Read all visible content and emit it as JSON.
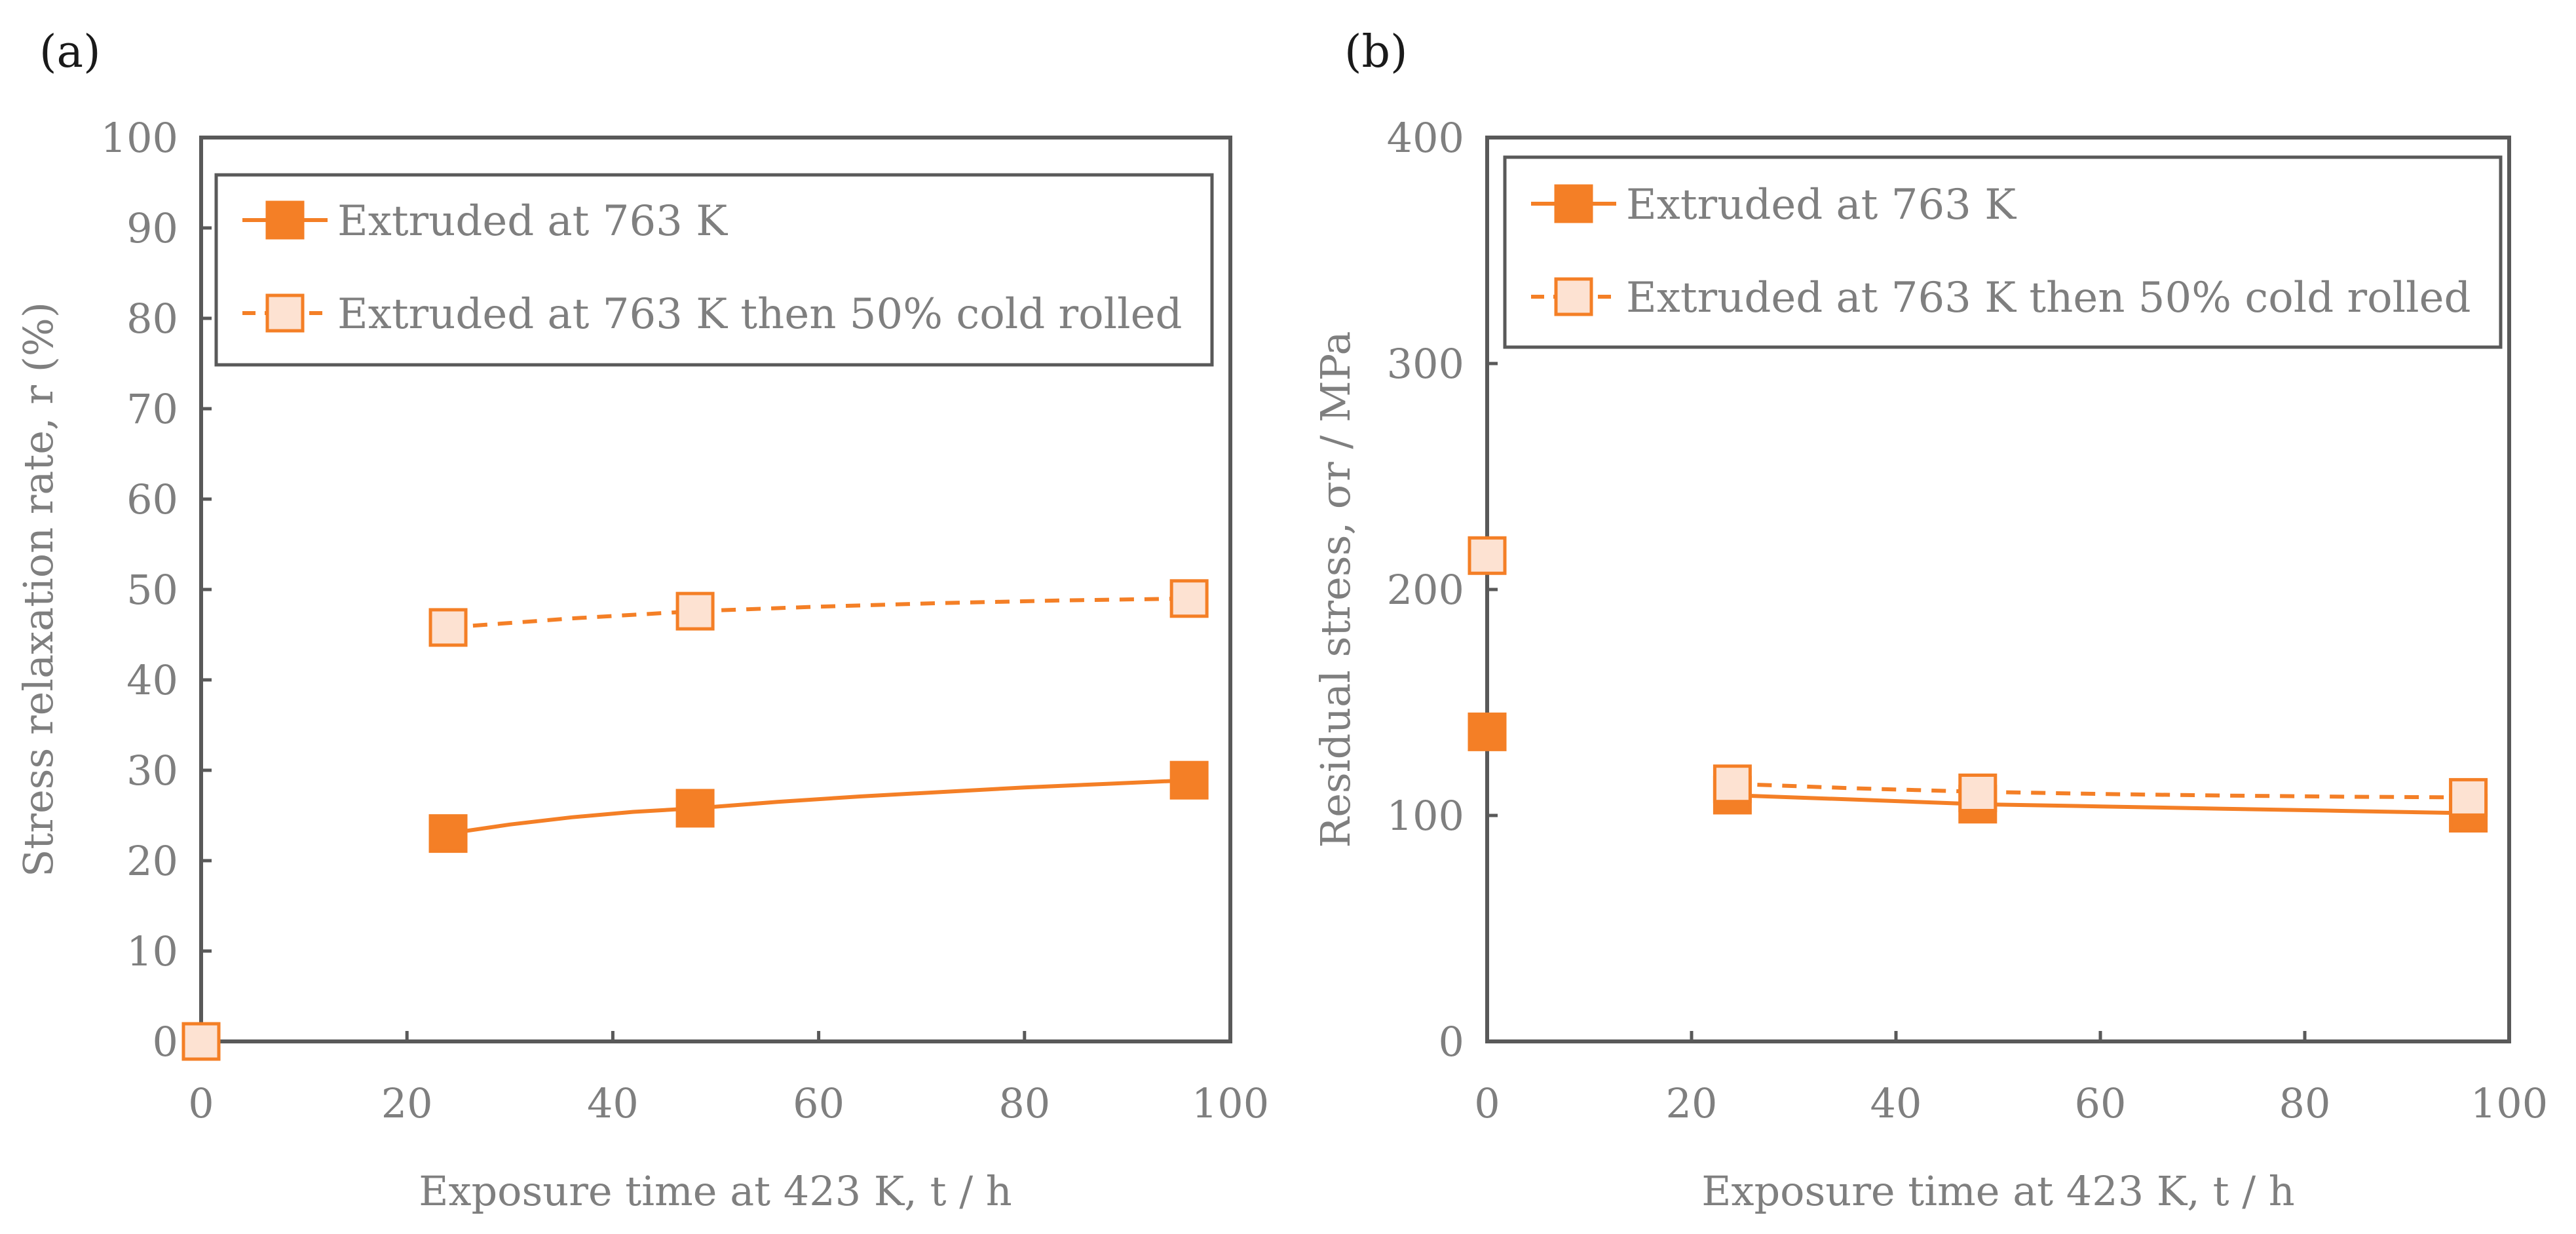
{
  "chart_data": [
    {
      "panel": "(a)",
      "type": "line",
      "xlabel": "Exposure time at 423 K, t / h",
      "ylabel": "Stress relaxation rate, r (%)",
      "xlim": [
        0,
        100
      ],
      "ylim": [
        0,
        100
      ],
      "xticks": [
        0,
        20,
        40,
        60,
        80,
        100
      ],
      "yticks": [
        0,
        10,
        20,
        30,
        40,
        50,
        60,
        70,
        80,
        90,
        100
      ],
      "grid": false,
      "legend_position": "top",
      "series": [
        {
          "name": "Extruded at 763 K",
          "marker": "filled-square",
          "line": "solid",
          "color": "#f47f26",
          "x": [
            24,
            48,
            96
          ],
          "y": [
            23,
            25.8,
            28.9
          ],
          "curve": [
            [
              24,
              23
            ],
            [
              30,
              24
            ],
            [
              36,
              24.8
            ],
            [
              42,
              25.4
            ],
            [
              48,
              25.8
            ],
            [
              56,
              26.5
            ],
            [
              64,
              27.1
            ],
            [
              72,
              27.6
            ],
            [
              80,
              28.1
            ],
            [
              88,
              28.5
            ],
            [
              96,
              28.9
            ]
          ]
        },
        {
          "name": "Extruded at 763 K then 50% cold rolled",
          "marker": "open-square",
          "line": "dashed",
          "color": "#f47f26",
          "x": [
            0,
            24,
            48,
            96
          ],
          "y": [
            0,
            45.8,
            47.6,
            49
          ],
          "curve": [
            [
              24,
              45.8
            ],
            [
              36,
              46.8
            ],
            [
              48,
              47.6
            ],
            [
              60,
              48.1
            ],
            [
              72,
              48.5
            ],
            [
              84,
              48.8
            ],
            [
              96,
              49
            ]
          ]
        }
      ]
    },
    {
      "panel": "(b)",
      "type": "line",
      "xlabel": "Exposure time at 423 K, t / h",
      "ylabel": "Residual stress, σr / MPa",
      "xlim": [
        0,
        100
      ],
      "ylim": [
        0,
        400
      ],
      "xticks": [
        0,
        20,
        40,
        60,
        80,
        100
      ],
      "yticks": [
        0,
        100,
        200,
        300,
        400
      ],
      "grid": false,
      "legend_position": "top",
      "series": [
        {
          "name": "Extruded at 763 K",
          "marker": "filled-square",
          "line": "solid",
          "color": "#f47f26",
          "x": [
            0,
            24,
            48,
            96
          ],
          "y": [
            137,
            109,
            105,
            101
          ],
          "curve": [
            [
              24,
              109
            ],
            [
              36,
              107
            ],
            [
              48,
              105
            ],
            [
              60,
              104
            ],
            [
              72,
              103
            ],
            [
              84,
              102
            ],
            [
              96,
              101
            ]
          ]
        },
        {
          "name": "Extruded at 763 K then 50% cold rolled",
          "marker": "open-square",
          "line": "dashed",
          "color": "#f47f26",
          "x": [
            0,
            24,
            48,
            96
          ],
          "y": [
            215,
            114,
            110,
            108
          ],
          "curve": [
            [
              24,
              114
            ],
            [
              36,
              112
            ],
            [
              48,
              110.5
            ],
            [
              60,
              109.5
            ],
            [
              72,
              108.8
            ],
            [
              84,
              108.3
            ],
            [
              96,
              108
            ]
          ]
        }
      ]
    }
  ]
}
